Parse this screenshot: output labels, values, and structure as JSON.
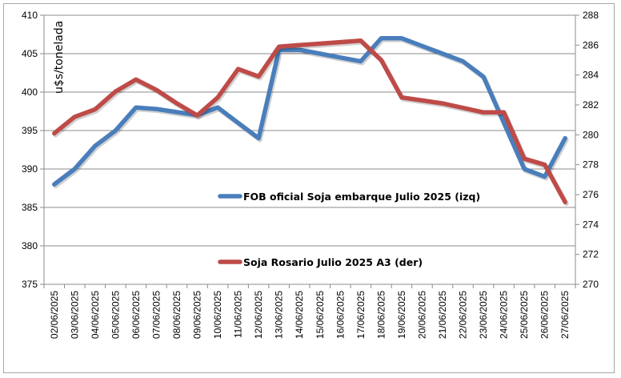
{
  "chart_data": {
    "type": "line",
    "ylabel": "u$s/tonelada",
    "categories": [
      "02/06/2025",
      "03/06/2025",
      "04/06/2025",
      "05/06/2025",
      "06/06/2025",
      "07/06/2025",
      "08/06/2025",
      "09/06/2025",
      "10/06/2025",
      "11/06/2025",
      "12/06/2025",
      "13/06/2025",
      "14/06/2025",
      "15/06/2025",
      "16/06/2025",
      "17/06/2025",
      "18/06/2025",
      "19/06/2025",
      "20/06/2025",
      "21/06/2025",
      "22/06/2025",
      "23/06/2025",
      "24/06/2025",
      "25/06/2025",
      "26/06/2025",
      "27/06/2025"
    ],
    "y_left": {
      "lim": [
        375,
        410
      ],
      "ticks": [
        375,
        380,
        385,
        390,
        395,
        400,
        405,
        410
      ]
    },
    "y_right": {
      "lim": [
        270,
        288
      ],
      "ticks": [
        270,
        272,
        274,
        276,
        278,
        280,
        282,
        284,
        286,
        288
      ]
    },
    "grid": true,
    "series": [
      {
        "name": "FOB oficial Soja embarque Julio 2025 (izq)",
        "axis": "left",
        "color": "#4a7ebb",
        "values": [
          388,
          390,
          393,
          395,
          398,
          397.8,
          397.4,
          397,
          398,
          396,
          394,
          405.5,
          405.5,
          405,
          404.5,
          404,
          407,
          407,
          406,
          405,
          404,
          402,
          396,
          390,
          389,
          394
        ]
      },
      {
        "name": "Soja Rosario Julio 2025 A3 (der)",
        "axis": "right",
        "color": "#be4b48",
        "values": [
          280.1,
          281.2,
          281.7,
          282.9,
          283.7,
          283.0,
          282.1,
          281.3,
          282.5,
          284.4,
          283.9,
          285.9,
          286.0,
          286.1,
          286.2,
          286.3,
          285.0,
          282.5,
          282.3,
          282.1,
          281.8,
          281.5,
          281.5,
          278.4,
          278.0,
          275.5
        ]
      }
    ]
  }
}
